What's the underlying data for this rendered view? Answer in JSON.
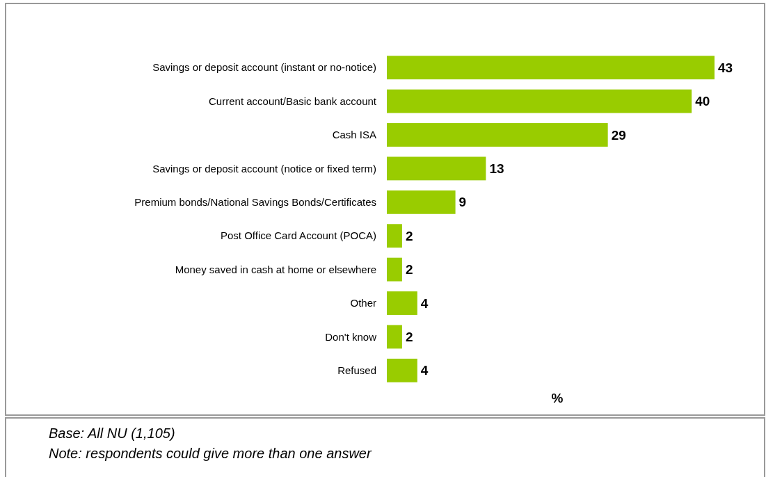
{
  "chart_data": {
    "type": "bar",
    "orientation": "horizontal",
    "xlabel": "%",
    "categories": [
      "Savings or deposit account (instant or no-notice)",
      "Current account/Basic bank account",
      "Cash ISA",
      "Savings or deposit account (notice or fixed term)",
      "Premium bonds/National Savings Bonds/Certificates",
      "Post Office Card Account (POCA)",
      "Money saved in cash at home or elsewhere",
      "Other",
      "Don't know",
      "Refused"
    ],
    "values": [
      43,
      40,
      29,
      13,
      9,
      2,
      2,
      4,
      2,
      4
    ],
    "color": "#99cc00",
    "data_labels": true,
    "annotations": [
      "Base: All NU (1,105)",
      "Note: respondents could give more than one answer"
    ]
  }
}
